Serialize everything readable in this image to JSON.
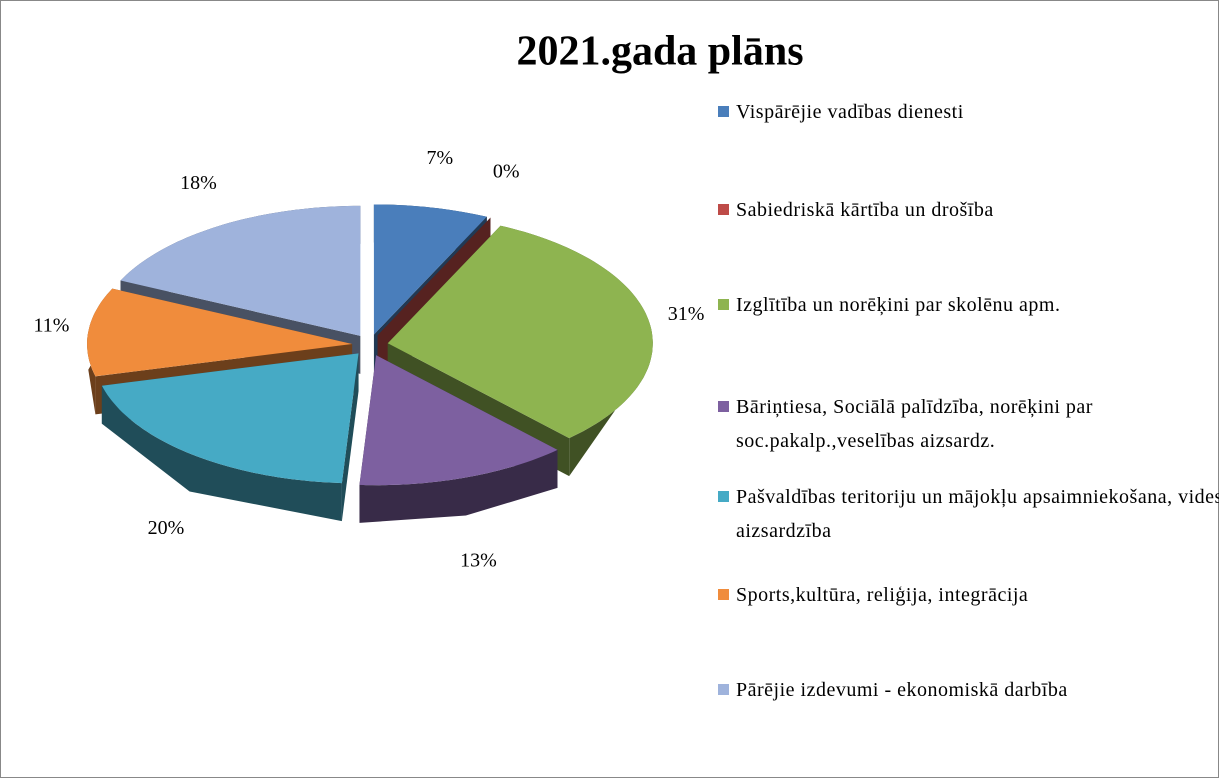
{
  "chart_data": {
    "type": "pie",
    "title": "2021.gada plāns",
    "categories": [
      "Vispārējie vadības dienesti",
      "Sabiedriskā kārtība un drošība",
      "Izglītība un norēķini par skolēnu apm.",
      "Bāriņtiesa, Sociālā palīdzība, norēķini par soc.pakalp.,veselības aizsardz.",
      "Pašvaldības teritoriju un mājokļu apsaimniekošana, vides aizsardzība",
      "Sports,kultūra, reliģija, integrācija",
      "Pārējie izdevumi - ekonomiskā darbība"
    ],
    "values": [
      7,
      0,
      31,
      13,
      20,
      11,
      18
    ],
    "value_labels": [
      "7%",
      "0%",
      "31%",
      "13%",
      "20%",
      "11%",
      "18%"
    ],
    "colors": [
      "#4a7ebb",
      "#be4b48",
      "#8eb450",
      "#7d60a0",
      "#46aac5",
      "#f08c3c",
      "#9fb3dc"
    ]
  }
}
